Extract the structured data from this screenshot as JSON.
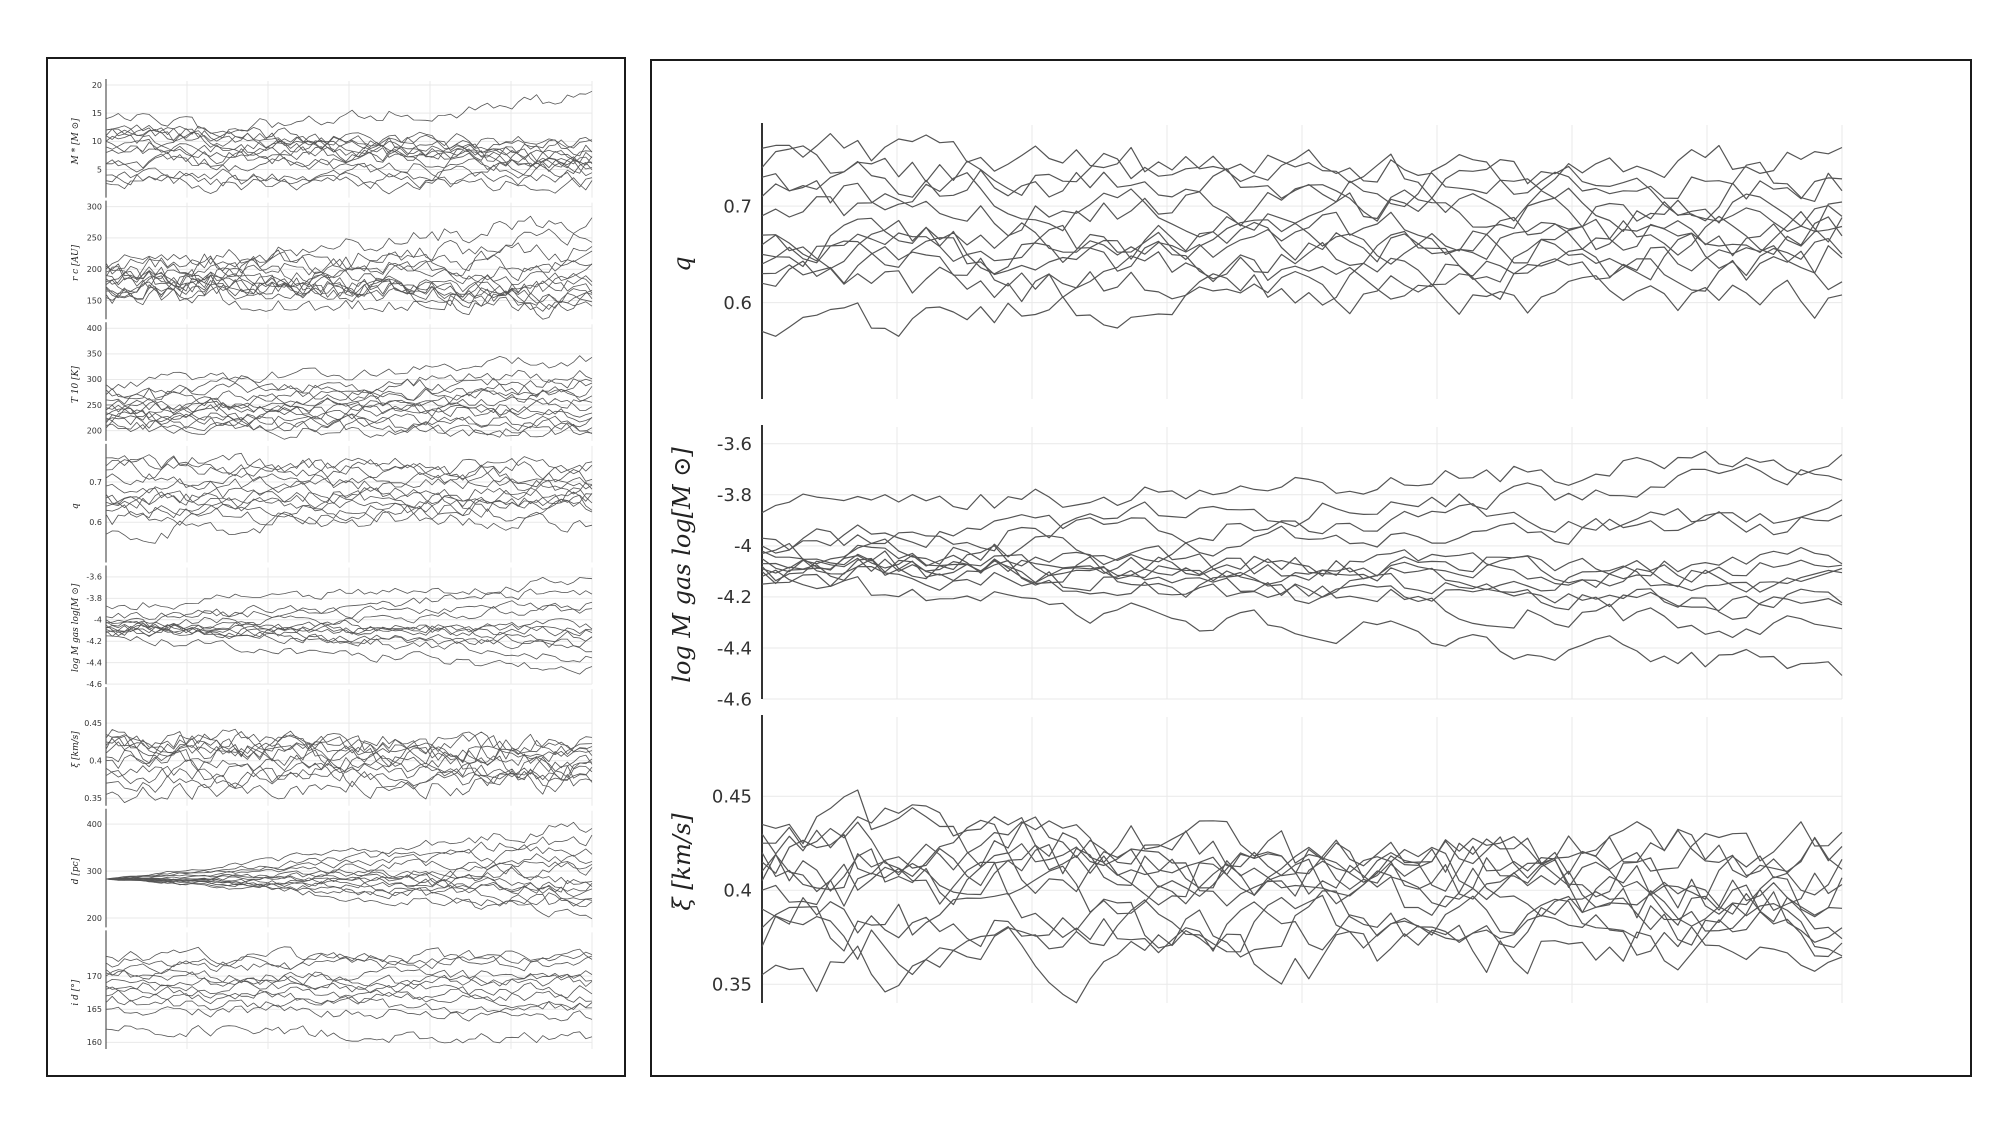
{
  "figure": {
    "left_panel_name": "all-parameter-traces",
    "right_panel_name": "zoomed-parameter-traces"
  },
  "style": {
    "trace_color": "#555555",
    "grid_color": "#e9e9e9",
    "axis_color": "#333333",
    "frame_color": "#1b1b1b"
  },
  "chart_data": [
    {
      "type": "line",
      "panel": "left",
      "ylabel": "M_* [M_⊙]",
      "ylim": [
        0,
        20
      ],
      "yticks": [
        "20",
        "15",
        "10",
        "5"
      ],
      "ytick_values": [
        20,
        15,
        10,
        5
      ],
      "grid": true,
      "walkers": 14,
      "steps": 80,
      "walker_start": [
        11,
        10,
        6,
        14,
        12,
        4,
        3,
        9,
        8,
        12,
        6,
        2.5,
        10,
        11
      ],
      "walker_end": [
        17.5,
        10,
        9,
        6,
        7,
        5,
        3,
        8,
        6,
        9,
        5,
        2.5,
        6,
        7
      ],
      "noise": 1.2
    },
    {
      "type": "line",
      "panel": "left",
      "ylabel": "r_c [AU]",
      "ylim": [
        120,
        300
      ],
      "yticks": [
        "300",
        "250",
        "200",
        "150"
      ],
      "ytick_values": [
        300,
        250,
        200,
        150
      ],
      "grid": true,
      "walkers": 14,
      "steps": 80,
      "walker_start": [
        200,
        185,
        170,
        160,
        210,
        175,
        195,
        180,
        165,
        190,
        155,
        205,
        172,
        188
      ],
      "walker_end": [
        280,
        250,
        230,
        180,
        200,
        160,
        140,
        170,
        155,
        190,
        135,
        210,
        175,
        150
      ],
      "noise": 14
    },
    {
      "type": "line",
      "panel": "left",
      "ylabel": "T_10 [K]",
      "ylim": [
        180,
        400
      ],
      "yticks": [
        "400",
        "350",
        "300",
        "250",
        "200"
      ],
      "ytick_values": [
        400,
        350,
        300,
        250,
        200
      ],
      "grid": true,
      "walkers": 14,
      "steps": 80,
      "walker_start": [
        290,
        280,
        240,
        230,
        220,
        210,
        250,
        260,
        235,
        225,
        215,
        205,
        270,
        245
      ],
      "walker_end": [
        340,
        310,
        290,
        270,
        250,
        210,
        230,
        280,
        240,
        220,
        200,
        195,
        300,
        260
      ],
      "noise": 12
    },
    {
      "type": "line",
      "panel": "left",
      "ylabel": "q",
      "ylim": [
        0.5,
        0.78
      ],
      "yticks": [
        "0.7",
        "0.6"
      ],
      "ytick_values": [
        0.7,
        0.6
      ],
      "grid": true,
      "walkers": 12,
      "steps": 80,
      "walker_start": [
        0.74,
        0.71,
        0.66,
        0.64,
        0.76,
        0.67,
        0.62,
        0.57,
        0.69,
        0.73,
        0.63,
        0.65
      ],
      "walker_end": [
        0.74,
        0.69,
        0.66,
        0.65,
        0.71,
        0.67,
        0.6,
        0.66,
        0.7,
        0.73,
        0.63,
        0.68
      ],
      "noise": 0.018
    },
    {
      "type": "line",
      "panel": "left",
      "ylabel": "log M_gas  log[M_⊙]",
      "ylim": [
        -4.6,
        -3.55
      ],
      "yticks": [
        "-3.6",
        "-3.8",
        "-4",
        "-4.2",
        "-4.4",
        "-4.6"
      ],
      "ytick_values": [
        -3.6,
        -3.8,
        -4.0,
        -4.2,
        -4.4,
        -4.6
      ],
      "grid": true,
      "walkers": 12,
      "steps": 80,
      "walker_start": [
        -3.87,
        -4.0,
        -4.05,
        -4.1,
        -4.08,
        -4.12,
        -4.03,
        -4.15,
        -4.07,
        -3.97,
        -4.09,
        -4.02
      ],
      "walker_end": [
        -3.65,
        -3.72,
        -3.9,
        -4.05,
        -4.1,
        -4.2,
        -4.35,
        -4.48,
        -4.12,
        -3.88,
        -4.25,
        -4.15
      ],
      "noise": 0.045
    },
    {
      "type": "line",
      "panel": "left",
      "ylabel": "ξ [km/s]",
      "ylim": [
        0.34,
        0.49
      ],
      "yticks": [
        "0.45",
        "0.4",
        "0.35"
      ],
      "ytick_values": [
        0.45,
        0.4,
        0.35
      ],
      "grid": true,
      "walkers": 12,
      "steps": 80,
      "walker_start": [
        0.43,
        0.42,
        0.41,
        0.38,
        0.355,
        0.4,
        0.425,
        0.435,
        0.39,
        0.415,
        0.37,
        0.405
      ],
      "walker_end": [
        0.42,
        0.42,
        0.4,
        0.38,
        0.375,
        0.39,
        0.385,
        0.4,
        0.37,
        0.41,
        0.395,
        0.42
      ],
      "noise": 0.012
    },
    {
      "type": "line",
      "panel": "left",
      "ylabel": "d [pc]",
      "ylim": [
        180,
        420
      ],
      "yticks": [
        "400",
        "300",
        "200"
      ],
      "ytick_values": [
        400,
        300,
        200
      ],
      "grid": true,
      "walkers": 14,
      "steps": 80,
      "walker_start": [
        283,
        283,
        283,
        283,
        283,
        283,
        283,
        283,
        283,
        283,
        283,
        283,
        283,
        283
      ],
      "walker_end": [
        400,
        370,
        330,
        300,
        290,
        270,
        250,
        230,
        210,
        310,
        280,
        260,
        350,
        240
      ],
      "noise": 7,
      "noise_growth": true
    },
    {
      "type": "line",
      "panel": "left",
      "ylabel": "i_d [°]",
      "ylim": [
        159,
        176
      ],
      "yticks": [
        "170",
        "165",
        "160"
      ],
      "ytick_values": [
        170,
        165,
        160
      ],
      "grid": true,
      "walkers": 12,
      "steps": 80,
      "walker_start": [
        172,
        171,
        170,
        169,
        168,
        167,
        165,
        162,
        173,
        170.5,
        168.5,
        166
      ],
      "walker_end": [
        173,
        172,
        170,
        169,
        167,
        166,
        164,
        160.5,
        173,
        169,
        168,
        165
      ],
      "noise": 0.8
    },
    {
      "type": "line",
      "panel": "right",
      "ylabel": "q",
      "ylim": [
        0.5,
        0.78
      ],
      "yticks": [
        "0.7",
        "0.6"
      ],
      "ytick_values": [
        0.7,
        0.6
      ],
      "grid": true,
      "walkers": 12,
      "steps": 80,
      "walker_start": [
        0.74,
        0.71,
        0.66,
        0.64,
        0.76,
        0.67,
        0.62,
        0.57,
        0.69,
        0.73,
        0.63,
        0.65
      ],
      "walker_end": [
        0.74,
        0.69,
        0.66,
        0.65,
        0.71,
        0.67,
        0.6,
        0.66,
        0.7,
        0.73,
        0.63,
        0.68
      ],
      "noise": 0.018
    },
    {
      "type": "line",
      "panel": "right",
      "ylabel": "log M_gas  log[M_⊙]",
      "ylim": [
        -4.6,
        -3.55
      ],
      "yticks": [
        "-3.6",
        "-3.8",
        "-4",
        "-4.2",
        "-4.4",
        "-4.6"
      ],
      "ytick_values": [
        -3.6,
        -3.8,
        -4.0,
        -4.2,
        -4.4,
        -4.6
      ],
      "grid": true,
      "walkers": 12,
      "steps": 80,
      "walker_start": [
        -3.87,
        -4.0,
        -4.05,
        -4.1,
        -4.08,
        -4.12,
        -4.03,
        -4.15,
        -4.07,
        -3.97,
        -4.09,
        -4.02
      ],
      "walker_end": [
        -3.65,
        -3.72,
        -3.9,
        -4.05,
        -4.1,
        -4.2,
        -4.35,
        -4.48,
        -4.12,
        -3.88,
        -4.25,
        -4.15
      ],
      "noise": 0.045
    },
    {
      "type": "line",
      "panel": "right",
      "ylabel": "ξ [km/s]",
      "ylim": [
        0.34,
        0.49
      ],
      "yticks": [
        "0.45",
        "0.4",
        "0.35"
      ],
      "ytick_values": [
        0.45,
        0.4,
        0.35
      ],
      "grid": true,
      "walkers": 12,
      "steps": 80,
      "walker_start": [
        0.43,
        0.42,
        0.41,
        0.38,
        0.355,
        0.4,
        0.425,
        0.435,
        0.39,
        0.415,
        0.37,
        0.405
      ],
      "walker_end": [
        0.42,
        0.42,
        0.4,
        0.38,
        0.375,
        0.39,
        0.385,
        0.4,
        0.37,
        0.41,
        0.395,
        0.42
      ],
      "noise": 0.012
    }
  ]
}
